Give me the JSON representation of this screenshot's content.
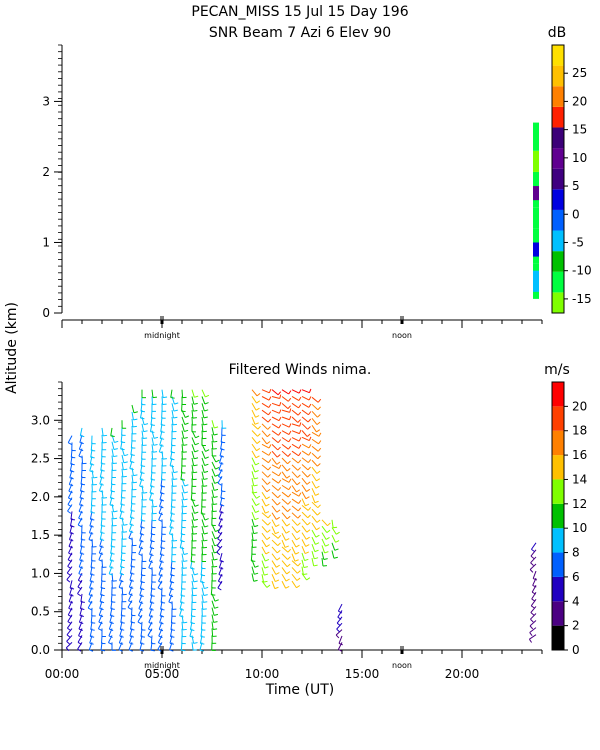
{
  "header": {
    "title_line1": "PECAN_MISS  15 Jul 15 Day 196",
    "title_line2": "SNR Beam 7 Azi    6 Elev 90"
  },
  "shared": {
    "ylabel": "Altitude (km)",
    "xlabel": "Time (UT)",
    "midnight_label": "midnight",
    "noon_label": "noon"
  },
  "chart_data": [
    {
      "type": "heatmap",
      "title": "SNR Beam 7 Azi    6 Elev 90",
      "ylabel": "Altitude (km)",
      "ylim": [
        0,
        3.8
      ],
      "yticks": [
        0,
        1,
        2,
        3
      ],
      "xlim": [
        0,
        24
      ],
      "x_markers": [
        {
          "x": 5,
          "label": "midnight"
        },
        {
          "x": 17,
          "label": "noon"
        }
      ],
      "colorbar": {
        "unit": "dB",
        "ticks": [
          -15,
          -10,
          -5,
          0,
          5,
          10,
          15,
          20,
          25
        ],
        "min": -17.5,
        "max": 30,
        "colors": [
          "#7fff00",
          "#00ff40",
          "#00c000",
          "#00c0ff",
          "#0060ff",
          "#0000e0",
          "#400080",
          "#600090",
          "#3c0078",
          "#ff2000",
          "#ff8000",
          "#ffc000",
          "#ffe000"
        ]
      },
      "cells": [
        {
          "x": 23.7,
          "y": 0.2,
          "h": 0.5,
          "v": -12
        },
        {
          "x": 23.7,
          "y": 0.7,
          "h": 0.5,
          "v": -13
        },
        {
          "x": 23.7,
          "y": 1.2,
          "h": 0.3,
          "v": -12
        },
        {
          "x": 23.7,
          "y": 1.5,
          "h": 0.5,
          "v": -13
        },
        {
          "x": 23.7,
          "y": 2.0,
          "h": 0.3,
          "v": -14
        },
        {
          "x": 23.7,
          "y": 2.3,
          "h": 0.4,
          "v": -13
        },
        {
          "x": 23.7,
          "y": 0.3,
          "h": 0.3,
          "v": -4
        },
        {
          "x": 23.7,
          "y": 0.8,
          "h": 0.2,
          "v": 3
        },
        {
          "x": 23.7,
          "y": 1.6,
          "h": 0.2,
          "v": 9
        }
      ]
    },
    {
      "type": "scatter",
      "title": "Filtered Winds nima.",
      "ylabel": "Altitude (km)",
      "xlabel": "Time (UT)",
      "ylim": [
        0,
        3.5
      ],
      "yticks": [
        0.0,
        0.5,
        1.0,
        1.5,
        2.0,
        2.5,
        3.0
      ],
      "xlim": [
        0,
        24
      ],
      "xticks": [
        0,
        5,
        10,
        15,
        20
      ],
      "xticklabels": [
        "00:00",
        "05:00",
        "10:00",
        "15:00",
        "20:00"
      ],
      "x_markers": [
        {
          "x": 5,
          "label": "midnight"
        },
        {
          "x": 17,
          "label": "noon"
        }
      ],
      "colorbar": {
        "unit": "m/s",
        "ticks": [
          0,
          2,
          4,
          6,
          8,
          10,
          12,
          14,
          16,
          18,
          20
        ],
        "min": 0,
        "max": 22,
        "colors": [
          "#000000",
          "#4b0082",
          "#2000c0",
          "#0060ff",
          "#00c0ff",
          "#00c000",
          "#7fff00",
          "#ffc000",
          "#ff8000",
          "#ff4000",
          "#ff0000"
        ]
      },
      "wind_columns": [
        {
          "x": 0.5,
          "y0": 0.1,
          "y1": 2.8,
          "speed": [
            4,
            7
          ]
        },
        {
          "x": 1.0,
          "y0": 0.1,
          "y1": 2.9,
          "speed": [
            5,
            8
          ]
        },
        {
          "x": 1.5,
          "y0": 0.1,
          "y1": 2.8,
          "speed": [
            6,
            9
          ]
        },
        {
          "x": 2.0,
          "y0": 0.1,
          "y1": 2.9,
          "speed": [
            7,
            9
          ]
        },
        {
          "x": 2.5,
          "y0": 0.1,
          "y1": 2.9,
          "speed": [
            7,
            10
          ]
        },
        {
          "x": 3.0,
          "y0": 0.1,
          "y1": 3.0,
          "speed": [
            7,
            10
          ]
        },
        {
          "x": 3.5,
          "y0": 0.1,
          "y1": 3.2,
          "speed": [
            6,
            10
          ]
        },
        {
          "x": 4.0,
          "y0": 0.1,
          "y1": 3.4,
          "speed": [
            6,
            10
          ]
        },
        {
          "x": 4.5,
          "y0": 0.1,
          "y1": 3.4,
          "speed": [
            6,
            10
          ]
        },
        {
          "x": 5.0,
          "y0": 0.1,
          "y1": 3.4,
          "speed": [
            6,
            9
          ]
        },
        {
          "x": 5.5,
          "y0": 0.1,
          "y1": 3.4,
          "speed": [
            7,
            10
          ]
        },
        {
          "x": 6.0,
          "y0": 0.1,
          "y1": 3.4,
          "speed": [
            8,
            11
          ]
        },
        {
          "x": 6.5,
          "y0": 0.1,
          "y1": 3.4,
          "speed": [
            9,
            12
          ]
        },
        {
          "x": 7.0,
          "y0": 0.1,
          "y1": 3.4,
          "speed": [
            9,
            12
          ]
        },
        {
          "x": 7.5,
          "y0": 0.1,
          "y1": 3.0,
          "speed": [
            10,
            12
          ]
        },
        {
          "x": 8.0,
          "y0": 0.9,
          "y1": 3.0,
          "speed": [
            4,
            8
          ]
        },
        {
          "x": 9.5,
          "y0": 1.0,
          "y1": 3.4,
          "speed": [
            10,
            16
          ]
        },
        {
          "x": 10.0,
          "y0": 0.9,
          "y1": 3.4,
          "speed": [
            13,
            19
          ]
        },
        {
          "x": 10.5,
          "y0": 0.9,
          "y1": 3.4,
          "speed": [
            14,
            20
          ]
        },
        {
          "x": 11.0,
          "y0": 0.9,
          "y1": 3.4,
          "speed": [
            14,
            20
          ]
        },
        {
          "x": 11.5,
          "y0": 0.9,
          "y1": 3.4,
          "speed": [
            14,
            20
          ]
        },
        {
          "x": 12.0,
          "y0": 1.0,
          "y1": 3.4,
          "speed": [
            13,
            20
          ]
        },
        {
          "x": 12.5,
          "y0": 1.2,
          "y1": 3.3,
          "speed": [
            13,
            18
          ]
        },
        {
          "x": 13.0,
          "y0": 1.2,
          "y1": 1.7,
          "speed": [
            11,
            14
          ]
        },
        {
          "x": 13.5,
          "y0": 1.3,
          "y1": 1.7,
          "speed": [
            11,
            13
          ]
        },
        {
          "x": 14.0,
          "y0": 0.1,
          "y1": 0.6,
          "speed": [
            3,
            5
          ]
        },
        {
          "x": 23.7,
          "y0": 0.2,
          "y1": 1.4,
          "speed": [
            2,
            4
          ]
        }
      ]
    }
  ]
}
